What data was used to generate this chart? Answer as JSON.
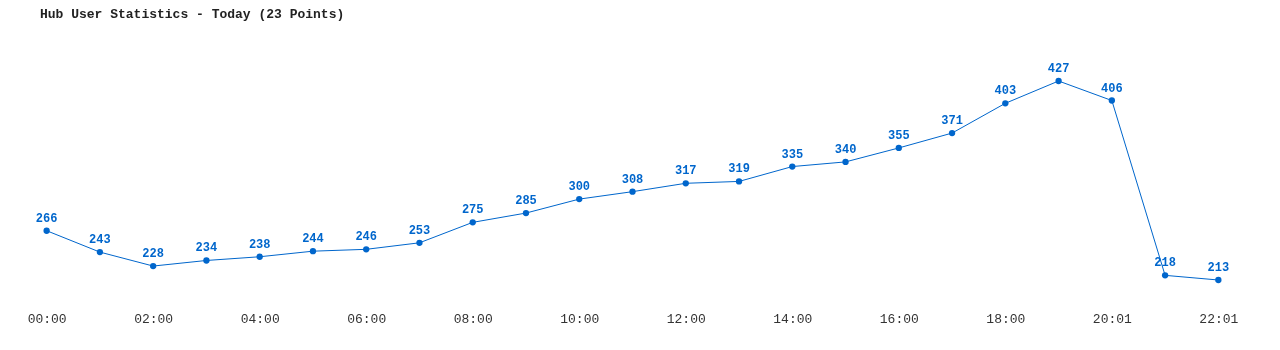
{
  "chart_data": {
    "type": "line",
    "title": "Hub User Statistics - Today (23 Points)",
    "categories": [
      "00:00",
      null,
      "02:00",
      null,
      "04:00",
      null,
      "06:00",
      null,
      "08:00",
      null,
      "10:00",
      null,
      "12:00",
      null,
      "14:00",
      null,
      "16:00",
      null,
      "18:00",
      null,
      "20:01",
      null,
      "22:01"
    ],
    "series": [
      {
        "color": "#0066cc",
        "values": [
          266,
          243,
          228,
          234,
          238,
          244,
          246,
          253,
          275,
          285,
          300,
          308,
          317,
          319,
          335,
          340,
          355,
          371,
          403,
          427,
          406,
          218,
          213
        ]
      }
    ],
    "data_labels": true,
    "marker": "circle",
    "line_style": "solid",
    "grid": false,
    "tick_labels": "x"
  }
}
